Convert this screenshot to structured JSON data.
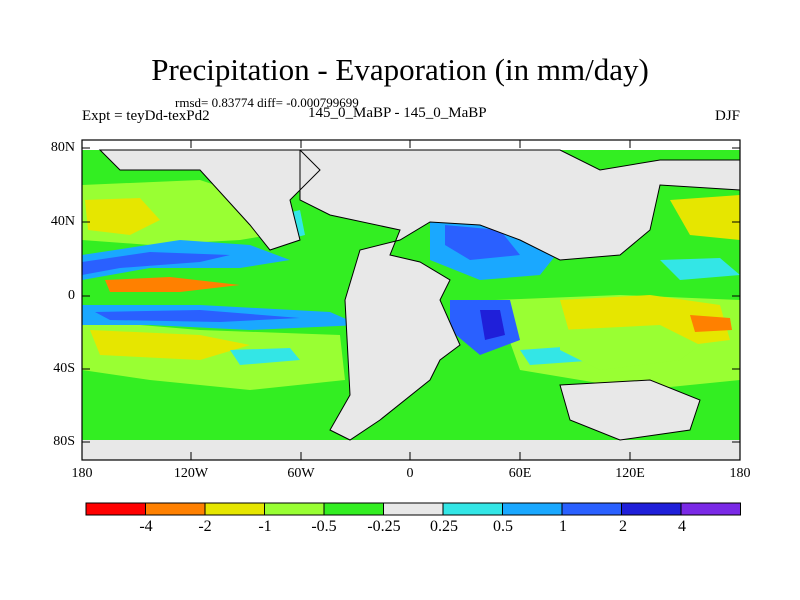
{
  "header": {
    "title": "Precipitation - Evaporation (in mm/day)",
    "stats": "rmsd= 0.83774 diff= -0.000799699",
    "experiment": "Expt = teyDd-texPd2",
    "period": "145_0_MaBP - 145_0_MaBP",
    "season": "DJF"
  },
  "axes": {
    "lat_labels": [
      "80N",
      "40N",
      "0",
      "40S",
      "80S"
    ],
    "lon_labels": [
      "180",
      "120W",
      "60W",
      "0",
      "60E",
      "120E",
      "180"
    ]
  },
  "colorbar": {
    "colors": [
      "#ff0000",
      "#ff8000",
      "#e6e600",
      "#99ff33",
      "#33ee22",
      "#e8e8e8",
      "#33e6e6",
      "#1aa8ff",
      "#2a60ff",
      "#1f1fd9",
      "#7a29e6"
    ],
    "labels": [
      "-4",
      "-2",
      "-1",
      "-0.5",
      "-0.25",
      "0.25",
      "0.5",
      "1",
      "2",
      "4"
    ]
  }
}
